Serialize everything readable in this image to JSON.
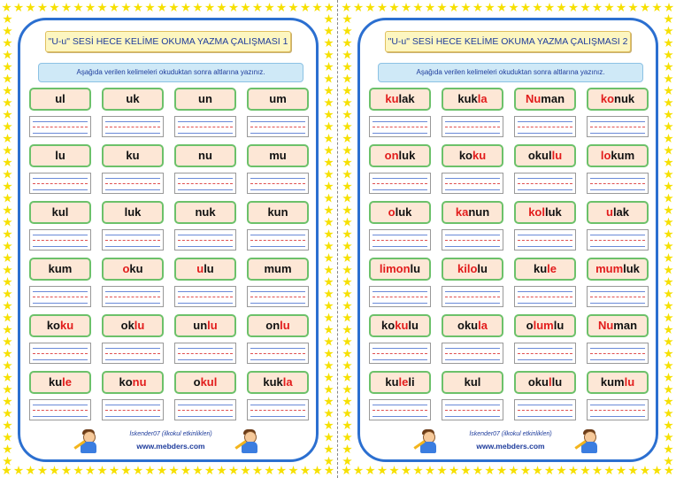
{
  "sheets": [
    {
      "title": "\"U-u\" SESİ HECE KELİME OKUMA YAZMA ÇALIŞMASI  1",
      "instruction": "Aşağıda verilen kelimeleri okuduktan sonra altlarına yazınız.",
      "rows": [
        [
          [
            {
              "t": "ul",
              "r": false
            }
          ],
          [
            {
              "t": "uk",
              "r": false
            }
          ],
          [
            {
              "t": "un",
              "r": false
            }
          ],
          [
            {
              "t": "um",
              "r": false
            }
          ]
        ],
        [
          [
            {
              "t": "lu",
              "r": false
            }
          ],
          [
            {
              "t": "ku",
              "r": false
            }
          ],
          [
            {
              "t": "nu",
              "r": false
            }
          ],
          [
            {
              "t": "mu",
              "r": false
            }
          ]
        ],
        [
          [
            {
              "t": "kul",
              "r": false
            }
          ],
          [
            {
              "t": "luk",
              "r": false
            }
          ],
          [
            {
              "t": "nuk",
              "r": false
            }
          ],
          [
            {
              "t": "kun",
              "r": false
            }
          ]
        ],
        [
          [
            {
              "t": "kum",
              "r": false
            }
          ],
          [
            {
              "t": "o",
              "r": true
            },
            {
              "t": "ku",
              "r": false
            }
          ],
          [
            {
              "t": "u",
              "r": true
            },
            {
              "t": "lu",
              "r": false
            }
          ],
          [
            {
              "t": "mum",
              "r": false
            }
          ]
        ],
        [
          [
            {
              "t": "ko",
              "r": false
            },
            {
              "t": "ku",
              "r": true
            }
          ],
          [
            {
              "t": "ok",
              "r": false
            },
            {
              "t": "lu",
              "r": true
            }
          ],
          [
            {
              "t": "un",
              "r": false
            },
            {
              "t": "lu",
              "r": true
            }
          ],
          [
            {
              "t": "on",
              "r": false
            },
            {
              "t": "lu",
              "r": true
            }
          ]
        ],
        [
          [
            {
              "t": "ku",
              "r": false
            },
            {
              "t": "le",
              "r": true
            }
          ],
          [
            {
              "t": "ko",
              "r": false
            },
            {
              "t": "nu",
              "r": true
            }
          ],
          [
            {
              "t": "o",
              "r": false
            },
            {
              "t": "kul",
              "r": true
            }
          ],
          [
            {
              "t": "kuk",
              "r": false
            },
            {
              "t": "la",
              "r": true
            }
          ]
        ]
      ],
      "credit": "İskender07  (ilkokul etkinlikleri)",
      "site": "www.mebders.com"
    },
    {
      "title": "\"U-u\" SESİ HECE KELİME OKUMA YAZMA ÇALIŞMASI  2",
      "instruction": "Aşağıda verilen kelimeleri okuduktan sonra altlarına yazınız.",
      "rows": [
        [
          [
            {
              "t": "ku",
              "r": true
            },
            {
              "t": "lak",
              "r": false
            }
          ],
          [
            {
              "t": "kuk",
              "r": false
            },
            {
              "t": "la",
              "r": true
            }
          ],
          [
            {
              "t": "Nu",
              "r": true
            },
            {
              "t": "man",
              "r": false
            }
          ],
          [
            {
              "t": "ko",
              "r": true
            },
            {
              "t": "nuk",
              "r": false
            }
          ]
        ],
        [
          [
            {
              "t": "on",
              "r": true
            },
            {
              "t": "luk",
              "r": false
            }
          ],
          [
            {
              "t": "ko",
              "r": false
            },
            {
              "t": "ku",
              "r": true
            }
          ],
          [
            {
              "t": "okul",
              "r": false
            },
            {
              "t": "lu",
              "r": true
            }
          ],
          [
            {
              "t": "lo",
              "r": true
            },
            {
              "t": "kum",
              "r": false
            }
          ]
        ],
        [
          [
            {
              "t": "o",
              "r": true
            },
            {
              "t": "luk",
              "r": false
            }
          ],
          [
            {
              "t": "ka",
              "r": true
            },
            {
              "t": "nun",
              "r": false
            }
          ],
          [
            {
              "t": "kol",
              "r": true
            },
            {
              "t": "luk",
              "r": false
            }
          ],
          [
            {
              "t": "u",
              "r": true
            },
            {
              "t": "lak",
              "r": false
            }
          ]
        ],
        [
          [
            {
              "t": "limon",
              "r": true
            },
            {
              "t": "lu",
              "r": false
            }
          ],
          [
            {
              "t": "kilo",
              "r": true
            },
            {
              "t": "lu",
              "r": false
            }
          ],
          [
            {
              "t": "ku",
              "r": false
            },
            {
              "t": "le",
              "r": true
            }
          ],
          [
            {
              "t": "mum",
              "r": true
            },
            {
              "t": "luk",
              "r": false
            }
          ]
        ],
        [
          [
            {
              "t": "ko",
              "r": false
            },
            {
              "t": "ku",
              "r": true
            },
            {
              "t": "lu",
              "r": false
            }
          ],
          [
            {
              "t": "oku",
              "r": false
            },
            {
              "t": "la",
              "r": true
            }
          ],
          [
            {
              "t": "o",
              "r": false
            },
            {
              "t": "lum",
              "r": true
            },
            {
              "t": "lu",
              "r": false
            }
          ],
          [
            {
              "t": "Nu",
              "r": true
            },
            {
              "t": "man",
              "r": false
            }
          ]
        ],
        [
          [
            {
              "t": "ku",
              "r": false
            },
            {
              "t": "le",
              "r": true
            },
            {
              "t": "li",
              "r": false
            }
          ],
          [
            {
              "t": "kul",
              "r": false
            }
          ],
          [
            {
              "t": "oku",
              "r": false
            },
            {
              "t": "l",
              "r": true
            },
            {
              "t": "lu",
              "r": false
            }
          ],
          [
            {
              "t": "kum",
              "r": false
            },
            {
              "t": "lu",
              "r": true
            }
          ]
        ]
      ],
      "credit": "İskender07  (ilkokul etkinlikleri)",
      "site": "www.mebders.com"
    }
  ],
  "colors": {
    "border": "#2b6fd0",
    "highlight": "#e21c1c",
    "word_bg": "#fde7d6",
    "word_border": "#6cc16a",
    "star": "#f6e000"
  },
  "icons": [
    "star-icon",
    "child-with-pencil-icon"
  ]
}
